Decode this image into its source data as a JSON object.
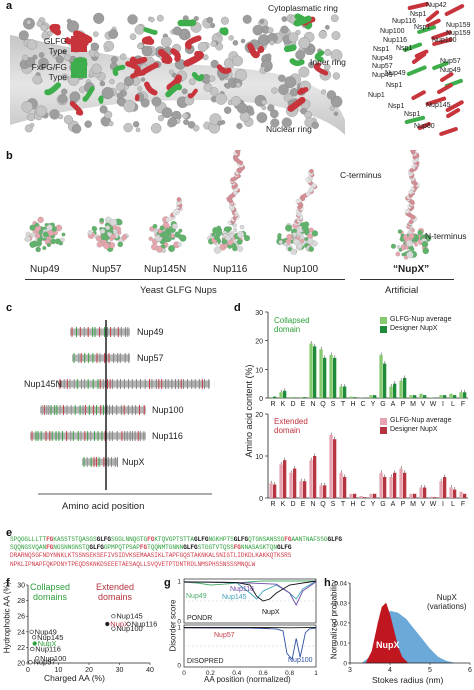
{
  "panel_labels": {
    "a": "a",
    "b": "b",
    "c": "c",
    "d": "d",
    "e": "e",
    "f": "f",
    "g": "g",
    "h": "h"
  },
  "panel_a": {
    "ring_labels": [
      "Cytoplasmatic ring",
      "Inner ring",
      "Nuclear ring"
    ],
    "legend": [
      {
        "label": "GLFG\nType",
        "color": "#c8343c"
      },
      {
        "label": "FxFG/FG\nType",
        "color": "#3dae4b"
      }
    ],
    "nup_labels": [
      "Nup42",
      "Nsp1",
      "Nup116",
      "Nsp1",
      "Nup159",
      "Nup100",
      "Nup159",
      "Nup116",
      "Nup100",
      "Nsp1",
      "Nsp1",
      "Nup49",
      "Nup57",
      "Nup57",
      "Nup49",
      "Nup49",
      "Nup49",
      "Nsp1",
      "Nup1",
      "Nsp1",
      "Nup145",
      "Nsp1",
      "Nup60"
    ]
  },
  "panel_b": {
    "structures": [
      "Nup49",
      "Nup57",
      "Nup145N",
      "Nup116",
      "Nup100",
      "“NupX”"
    ],
    "group_yeast": "Yeast GLFG Nups",
    "group_artificial": "Artificial",
    "c_terminus": "C-terminus",
    "n_terminus": "N-terminus"
  },
  "panel_c": {
    "rows": [
      "Nup49",
      "Nup57",
      "Nup145N",
      "Nup100",
      "Nup116",
      "NupX"
    ],
    "xlabel": "Amino acid position"
  },
  "panel_d": {
    "ylabel": "Amino acid content (%)",
    "chart_data": [
      {
        "type": "bar",
        "title": "Collapsed domain",
        "categories": [
          "R",
          "K",
          "D",
          "E",
          "N",
          "Q",
          "S",
          "T",
          "H",
          "C",
          "Y",
          "G",
          "A",
          "P",
          "M",
          "V",
          "W",
          "I",
          "L",
          "F"
        ],
        "series": [
          {
            "name": "GLFG-Nup average",
            "color": "#86c96f",
            "values": [
              0.3,
              2,
              0.3,
              0.3,
              19,
              17,
              15,
              4,
              0.5,
              0.1,
              1,
              15,
              4,
              6,
              1,
              1.5,
              0.2,
              1,
              1.5,
              2
            ]
          },
          {
            "name": "Designer NupX",
            "color": "#1e8a3a",
            "values": [
              0.5,
              2.5,
              0.2,
              0.3,
              18,
              14,
              14,
              4,
              0.3,
              0.1,
              1,
              12,
              5,
              7,
              1,
              1,
              0.1,
              1,
              1,
              2
            ]
          }
        ],
        "ylim": [
          0,
          30
        ],
        "yticks": [
          0,
          10,
          20,
          30
        ]
      },
      {
        "type": "bar",
        "title": "Extended domain",
        "categories": [
          "R",
          "K",
          "D",
          "E",
          "N",
          "Q",
          "S",
          "T",
          "H",
          "C",
          "Y",
          "G",
          "A",
          "P",
          "M",
          "V",
          "W",
          "I",
          "L",
          "F"
        ],
        "series": [
          {
            "name": "GLFG-Nup average",
            "color": "#e6a4b0",
            "values": [
              3.5,
              8,
              6,
              4,
              9,
              3,
              15,
              6,
              1,
              0.5,
              1,
              6,
              5,
              7,
              1,
              2.5,
              0.3,
              4,
              2.5,
              1.5
            ]
          },
          {
            "name": "Designer NupX",
            "color": "#b5343f",
            "values": [
              3.2,
              9,
              7,
              4,
              10,
              3,
              14,
              5,
              1,
              0.2,
              1,
              5,
              6,
              6,
              1,
              2.5,
              0.2,
              5,
              2,
              1
            ]
          }
        ],
        "ylim": [
          0,
          20
        ],
        "yticks": [
          0,
          10,
          20
        ]
      }
    ]
  },
  "panel_e": {
    "lines": [
      {
        "segments": [
          [
            "SPQGGLLLTT",
            "g"
          ],
          [
            "FG",
            "r"
          ],
          [
            "KASSTSTQASGS",
            "g"
          ],
          [
            "GLFG",
            "b"
          ],
          [
            "SGGLNNQGTG",
            "g"
          ],
          [
            "FG",
            "r"
          ],
          [
            "KTQVGPTSTTA",
            "g"
          ],
          [
            "GLFG",
            "b"
          ],
          [
            "NGKHPTS",
            "g"
          ],
          [
            "GLFG",
            "b"
          ],
          [
            "QTGNSANSSG",
            "g"
          ],
          [
            "FG",
            "r"
          ],
          [
            "AANTNAFSSG",
            "g"
          ],
          [
            "GLFG",
            "b"
          ]
        ]
      },
      {
        "segments": [
          [
            "SQQNGSVQAN",
            "g"
          ],
          [
            "FG",
            "r"
          ],
          [
            "NGSNNGNSTQ",
            "g"
          ],
          [
            "GLFG",
            "b"
          ],
          [
            "GPMPQTPSAP",
            "g"
          ],
          [
            "FG",
            "r"
          ],
          [
            "TQQNMTGNNN",
            "g"
          ],
          [
            "GLFG",
            "b"
          ],
          [
            "STGGTVTQSS",
            "g"
          ],
          [
            "FG",
            "r"
          ],
          [
            "NNASASKTQN",
            "g"
          ],
          [
            "GLFG",
            "b"
          ]
        ]
      },
      {
        "segments": [
          [
            "DRARNQSGFNDYNNKLKTSSNSEKSEFIVSIDVKSEMAASIKLTAPFGQSTAKNKALSNIGTLIDKDLKAKKQTKSRS",
            "r"
          ]
        ]
      },
      {
        "segments": [
          [
            "NPKLIPNAPFQKPDNYTPEQDSKNKDSEEETAESAQLLSVQVETPTDNTRDLNMSPHSSNSSSMNQLW",
            "r"
          ]
        ]
      }
    ],
    "colors": {
      "g": "#2c9f3a",
      "r": "#d13c4a",
      "b": "#111111"
    }
  },
  "panel_f": {
    "xlabel": "Charged AA (%)",
    "ylabel": "Hydrophobic AA (%)",
    "group_collapsed": "Collapsed\ndomains",
    "group_extended": "Extended\ndomains",
    "chart_data": {
      "type": "scatter",
      "xlim": [
        0,
        40
      ],
      "ylim": [
        20,
        30
      ],
      "xticks": [
        0,
        10,
        20,
        30,
        40
      ],
      "yticks": [
        20,
        22,
        24,
        26,
        28,
        30
      ],
      "points": [
        {
          "label": "Nup49",
          "x": 1.2,
          "y": 24.0,
          "kind": "open"
        },
        {
          "label": "Nup145",
          "x": 2.0,
          "y": 23.3,
          "kind": "open"
        },
        {
          "label": "NupX",
          "x": 2.2,
          "y": 22.5,
          "kind": "collapsed-nupx"
        },
        {
          "label": "Nup116",
          "x": 1.4,
          "y": 21.8,
          "kind": "open"
        },
        {
          "label": "Nup100",
          "x": 3.0,
          "y": 20.6,
          "kind": "open"
        },
        {
          "label": "Nup57",
          "x": 0.8,
          "y": 20.1,
          "kind": "open"
        },
        {
          "label": "Nup145",
          "x": 28.0,
          "y": 26.0,
          "kind": "open"
        },
        {
          "label": "NupX",
          "x": 26.0,
          "y": 25.0,
          "kind": "extended-nupx"
        },
        {
          "label": "Nup116",
          "x": 33.0,
          "y": 25.0,
          "kind": "open"
        },
        {
          "label": "Nup100",
          "x": 28.0,
          "y": 24.4,
          "kind": "open"
        }
      ]
    }
  },
  "panel_g": {
    "ylabel": "Disorder score",
    "xlabel": "AA position (normalized)",
    "top_method": "PONDR",
    "bottom_method": "DISOPRED",
    "chart_data": [
      {
        "type": "line",
        "title": "PONDR",
        "xlim": [
          0,
          1
        ],
        "ylim": [
          0,
          1
        ],
        "series": [
          {
            "name": "Nup49",
            "color": "#4cae6c",
            "points": [
              [
                0,
                0.97
              ],
              [
                0.1,
                0.95
              ],
              [
                0.2,
                0.9
              ],
              [
                0.3,
                0.92
              ],
              [
                0.4,
                0.95
              ],
              [
                0.5,
                0.98
              ],
              [
                0.6,
                1
              ],
              [
                0.8,
                1
              ],
              [
                1,
                1
              ]
            ]
          },
          {
            "name": "Nup145",
            "color": "#3ea0b8",
            "points": [
              [
                0,
                0.98
              ],
              [
                0.2,
                0.97
              ],
              [
                0.4,
                0.95
              ],
              [
                0.5,
                0.7
              ],
              [
                0.55,
                0.55
              ],
              [
                0.6,
                0.75
              ],
              [
                0.7,
                0.9
              ],
              [
                0.8,
                0.7
              ],
              [
                0.85,
                0.55
              ],
              [
                0.9,
                0.8
              ],
              [
                1,
                1
              ]
            ]
          },
          {
            "name": "Nup116",
            "color": "#6b4aa8",
            "points": [
              [
                0,
                0.97
              ],
              [
                0.3,
                0.97
              ],
              [
                0.5,
                0.95
              ],
              [
                0.7,
                0.92
              ],
              [
                0.8,
                0.7
              ],
              [
                0.85,
                0.4
              ],
              [
                0.9,
                0.75
              ],
              [
                1,
                0.98
              ]
            ]
          },
          {
            "name": "NupX",
            "color": "#111111",
            "points": [
              [
                0,
                0.98
              ],
              [
                0.2,
                0.97
              ],
              [
                0.4,
                0.96
              ],
              [
                0.5,
                0.9
              ],
              [
                0.55,
                0.62
              ],
              [
                0.6,
                0.5
              ],
              [
                0.65,
                0.55
              ],
              [
                0.7,
                0.7
              ],
              [
                0.8,
                0.9
              ],
              [
                1,
                1
              ]
            ]
          }
        ]
      },
      {
        "type": "line",
        "title": "DISOPRED",
        "xlim": [
          0,
          1
        ],
        "ylim": [
          0,
          1
        ],
        "series": [
          {
            "name": "Nup57",
            "color": "#c23b45",
            "points": [
              [
                0,
                0.98
              ],
              [
                0.2,
                0.97
              ],
              [
                0.4,
                0.97
              ],
              [
                0.6,
                0.97
              ],
              [
                0.65,
                0.97
              ]
            ]
          },
          {
            "name": "Nup100",
            "color": "#2c4fa0",
            "points": [
              [
                0,
                0.98
              ],
              [
                0.5,
                0.97
              ],
              [
                0.7,
                0.95
              ],
              [
                0.75,
                0.9
              ],
              [
                0.78,
                0.3
              ],
              [
                0.82,
                0.15
              ],
              [
                0.85,
                0.7
              ],
              [
                0.88,
                0.2
              ],
              [
                0.92,
                0.85
              ],
              [
                0.95,
                0.95
              ],
              [
                1,
                0.97
              ]
            ]
          },
          {
            "name": "NupX",
            "color": "#111111",
            "points": [
              [
                0,
                0.99
              ],
              [
                0.3,
                0.99
              ],
              [
                0.6,
                0.99
              ],
              [
                0.8,
                0.98
              ],
              [
                1,
                0.99
              ]
            ]
          }
        ]
      }
    ],
    "xticks": [
      0,
      0.2,
      0.4,
      0.6,
      0.8,
      1
    ],
    "xtick_labels": [
      "0",
      "0.2",
      "0.4",
      "0.6",
      "0.8",
      "1"
    ],
    "yticks": [
      0,
      1
    ]
  },
  "panel_h": {
    "xlabel": "Stokes radius (nm)",
    "ylabel": "Normalized probability",
    "label_variations": "NupX\n(variations)",
    "label_nupx": "NupX",
    "chart_data": {
      "type": "area",
      "xlim": [
        3,
        6
      ],
      "ylim": [
        0,
        0.04
      ],
      "xticks": [
        3,
        4,
        5,
        6
      ],
      "yticks": [
        0,
        0.01,
        0.02,
        0.03,
        0.04
      ],
      "series": [
        {
          "name": "NupX (variations)",
          "color": "#6aa9d8",
          "points": [
            [
              3.3,
              0
            ],
            [
              3.5,
              0.003
            ],
            [
              3.7,
              0.012
            ],
            [
              3.9,
              0.022
            ],
            [
              4.0,
              0.026
            ],
            [
              4.2,
              0.025
            ],
            [
              4.4,
              0.022
            ],
            [
              4.6,
              0.017
            ],
            [
              4.8,
              0.012
            ],
            [
              5.0,
              0.007
            ],
            [
              5.2,
              0.003
            ],
            [
              5.4,
              0.001
            ],
            [
              5.6,
              0
            ]
          ]
        },
        {
          "name": "NupX",
          "color": "#c0161f",
          "points": [
            [
              3.4,
              0
            ],
            [
              3.55,
              0.006
            ],
            [
              3.7,
              0.02
            ],
            [
              3.8,
              0.028
            ],
            [
              3.9,
              0.03
            ],
            [
              4.0,
              0.024
            ],
            [
              4.1,
              0.016
            ],
            [
              4.2,
              0.008
            ],
            [
              4.3,
              0.003
            ],
            [
              4.45,
              0
            ]
          ]
        }
      ]
    }
  }
}
